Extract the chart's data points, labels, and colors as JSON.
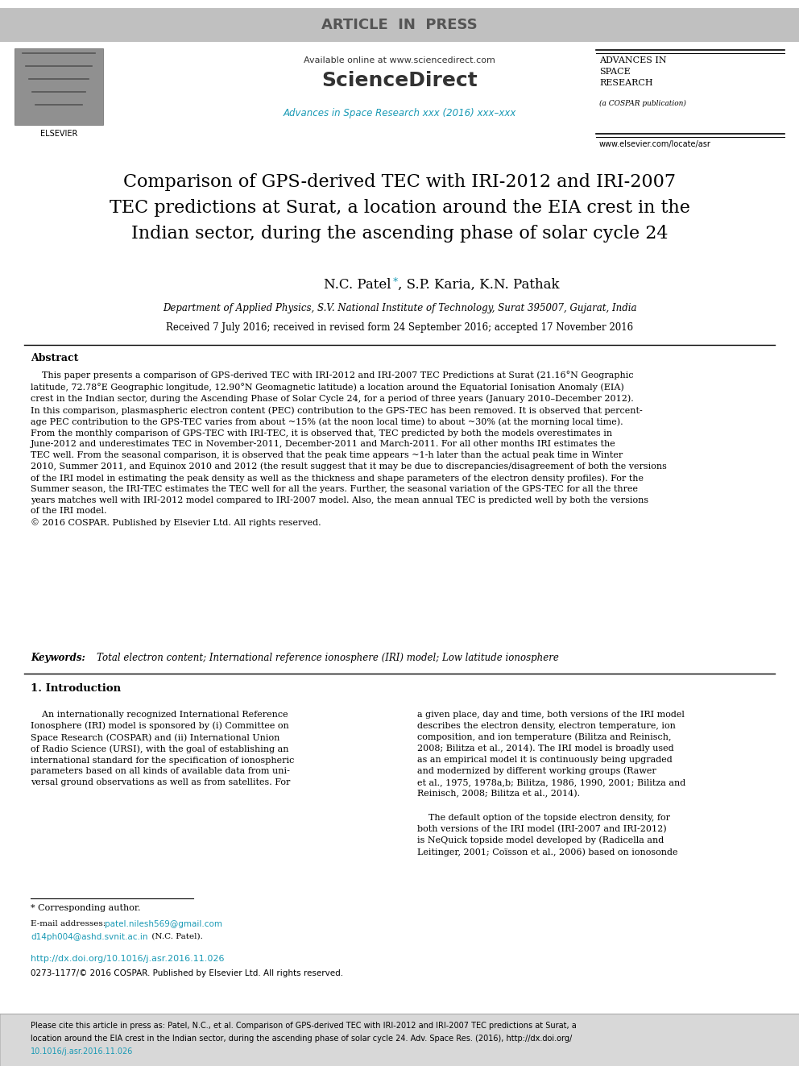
{
  "article_in_press_text": "ARTICLE  IN  PRESS",
  "header_available_online": "Available online at www.sciencedirect.com",
  "header_sciencedirect": "ScienceDirect",
  "header_journal": "Advances in Space Research xxx (2016) xxx–xxx",
  "header_url": "www.elsevier.com/locate/asr",
  "paper_title": "Comparison of GPS-derived TEC with IRI-2012 and IRI-2007\nTEC predictions at Surat, a location around the EIA crest in the\nIndian sector, during the ascending phase of solar cycle 24",
  "authors_main": "N.C. Patel",
  "authors_rest": ", S.P. Karia, K.N. Pathak",
  "affiliation": "Department of Applied Physics, S.V. National Institute of Technology, Surat 395007, Gujarat, India",
  "received": "Received 7 July 2016; received in revised form 24 September 2016; accepted 17 November 2016",
  "abstract_title": "Abstract",
  "abstract_text": "    This paper presents a comparison of GPS-derived TEC with IRI-2012 and IRI-2007 TEC Predictions at Surat (21.16°N Geographic\nlatitude, 72.78°E Geographic longitude, 12.90°N Geomagnetic latitude) a location around the Equatorial Ionisation Anomaly (EIA)\ncrest in the Indian sector, during the Ascending Phase of Solar Cycle 24, for a period of three years (January 2010–December 2012).\nIn this comparison, plasmaspheric electron content (PEC) contribution to the GPS-TEC has been removed. It is observed that percent-\nage PEC contribution to the GPS-TEC varies from about ~15% (at the noon local time) to about ~30% (at the morning local time).\nFrom the monthly comparison of GPS-TEC with IRI-TEC, it is observed that, TEC predicted by both the models overestimates in\nJune-2012 and underestimates TEC in November-2011, December-2011 and March-2011. For all other months IRI estimates the\nTEC well. From the seasonal comparison, it is observed that the peak time appears ~1-h later than the actual peak time in Winter\n2010, Summer 2011, and Equinox 2010 and 2012 (the result suggest that it may be due to discrepancies/disagreement of both the versions\nof the IRI model in estimating the peak density as well as the thickness and shape parameters of the electron density profiles). For the\nSummer season, the IRI-TEC estimates the TEC well for all the years. Further, the seasonal variation of the GPS-TEC for all the three\nyears matches well with IRI-2012 model compared to IRI-2007 model. Also, the mean annual TEC is predicted well by both the versions\nof the IRI model.\n© 2016 COSPAR. Published by Elsevier Ltd. All rights reserved.",
  "keywords_label": "Keywords:",
  "keywords_text": "Total electron content; International reference ionosphere (IRI) model; Low latitude ionosphere",
  "section1_title": "1. Introduction",
  "intro_col1_para1": "    An internationally recognized International Reference\nIonosphere (IRI) model is sponsored by (i) Committee on\nSpace Research (COSPAR) and (ii) International Union\nof Radio Science (URSI), with the goal of establishing an\ninternational standard for the specification of ionospheric\nparameters based on all kinds of available data from uni-\nversal ground observations as well as from satellites. For",
  "intro_col2_para1": "a given place, day and time, both versions of the IRI model\ndescribes the electron density, electron temperature, ion\ncomposition, and ion temperature (Bilitza and Reinisch,\n2008; Bilitza et al., 2014). The IRI model is broadly used\nas an empirical model it is continuously being upgraded\nand modernized by different working groups (Rawer\net al., 1975, 1978a,b; Bilitza, 1986, 1990, 2001; Bilitza and\nReinisch, 2008; Bilitza et al., 2014).",
  "intro_col2_para2": "    The default option of the topside electron density, for\nboth versions of the IRI model (IRI-2007 and IRI-2012)\nis NeQuick topside model developed by (Radicella and\nLeitinger, 2001; Coïsson et al., 2006) based on ionosonde",
  "footnote_star": "* Corresponding author.",
  "footnote_email_label": "E-mail addresses:",
  "footnote_email1": "patel.nilesh569@gmail.com",
  "footnote_email_sep": ", ",
  "footnote_email2": "d14ph004@ashd.svnit.ac.in",
  "footnote_email_end": " (N.C. Patel).",
  "doi_text": "http://dx.doi.org/10.1016/j.asr.2016.11.026",
  "issn_text": "0273-1177/© 2016 COSPAR. Published by Elsevier Ltd. All rights reserved.",
  "bottom_line1": "Please cite this article in press as: Patel, N.C., et al. Comparison of GPS-derived TEC with IRI-2012 and IRI-2007 TEC predictions at Surat, a",
  "bottom_line2": "location around the EIA crest in the Indian sector, during the ascending phase of solar cycle 24. Adv. Space Res. (2016), http://dx.doi.org/",
  "bottom_line3": "10.1016/j.asr.2016.11.026",
  "bg_color": "#ffffff",
  "text_color": "#000000",
  "cyan_color": "#1a9ab5",
  "gray_bg": "#c0c0c0",
  "bottom_bg": "#d8d8d8"
}
